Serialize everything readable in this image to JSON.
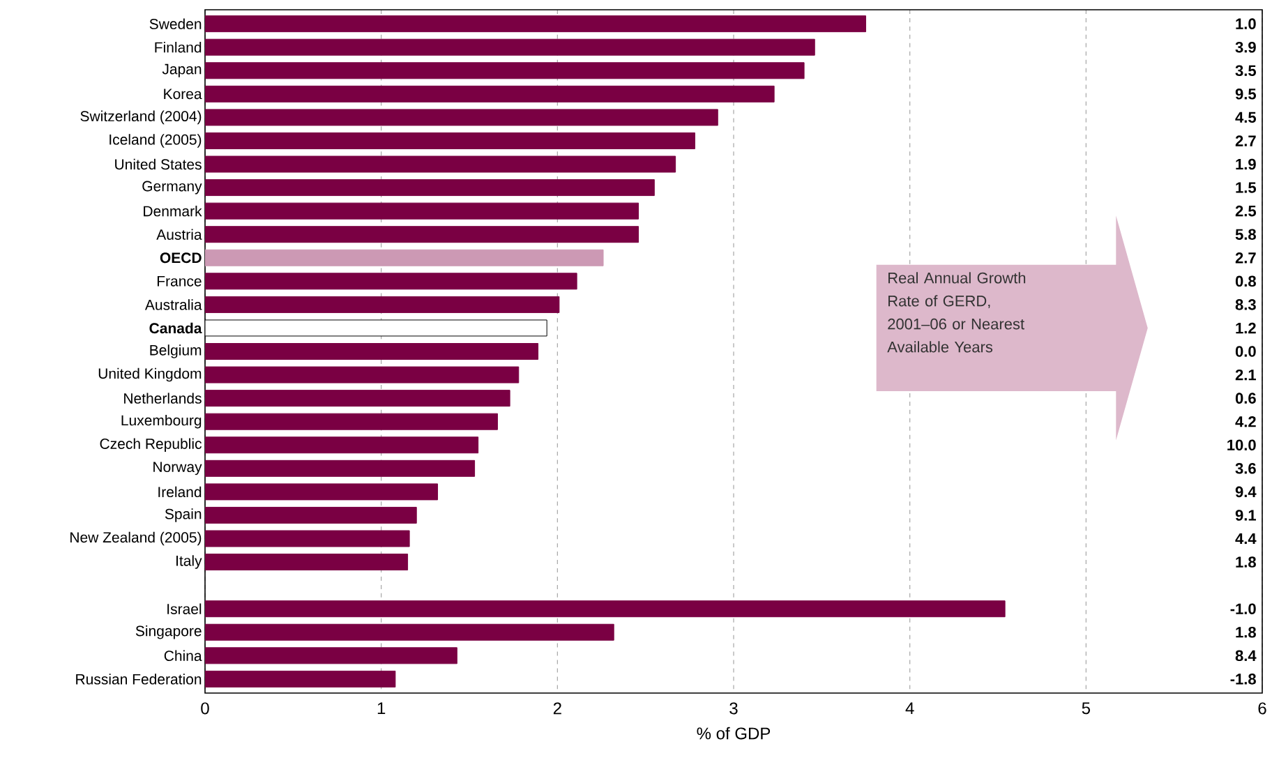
{
  "chart_data": {
    "type": "bar",
    "orientation": "horizontal",
    "xlabel": "% of GDP",
    "categories": [
      "Sweden",
      "Finland",
      "Japan",
      "Korea",
      "Switzerland (2004)",
      "Iceland (2005)",
      "United States",
      "Germany",
      "Denmark",
      "Austria",
      "**OECD**",
      "France",
      "Australia",
      "**Canada**",
      "Belgium",
      "United Kingdom",
      "Netherlands",
      "Luxembourg",
      "Czech Republic",
      "Norway",
      "Ireland",
      "Spain",
      "New Zealand (2005)",
      "Italy",
      null,
      "Israel",
      "Singapore",
      "China",
      "Russian Federation"
    ],
    "values": [
      3.75,
      3.46,
      3.4,
      3.23,
      2.91,
      2.78,
      2.67,
      2.55,
      2.46,
      2.46,
      2.26,
      2.11,
      2.01,
      1.94,
      1.89,
      1.78,
      1.73,
      1.66,
      1.55,
      1.53,
      1.32,
      1.2,
      1.16,
      1.15,
      null,
      4.54,
      2.32,
      1.43,
      1.08
    ],
    "colors": [
      "#7a0043",
      "#7a0043",
      "#7a0043",
      "#7a0043",
      "#7a0043",
      "#7a0043",
      "#7a0043",
      "#7a0043",
      "#7a0043",
      "#7a0043",
      "#cc99b4",
      "#7a0043",
      "#7a0043",
      "#ffffff",
      "#7a0043",
      "#7a0043",
      "#7a0043",
      "#7a0043",
      "#7a0043",
      "#7a0043",
      "#7a0043",
      "#7a0043",
      "#7a0043",
      "#7a0043",
      null,
      "#7a0043",
      "#7a0043",
      "#7a0043",
      "#7a0043"
    ],
    "xlim": [
      0,
      6
    ],
    "xticks": [
      0,
      1,
      2,
      3,
      4,
      5,
      6
    ],
    "grid": "x",
    "annotations": [
      "Real Annual Growth Rate of GERD, 2001–06 or Nearest Available Years",
      "1.0",
      "3.9",
      "3.5",
      "9.5",
      "4.5",
      "2.7",
      "1.9",
      "1.5",
      "2.5",
      "5.8",
      "2.7",
      "0.8",
      "8.3",
      "1.2",
      "0.0",
      "2.1",
      "0.6",
      "4.2",
      "10.0",
      "3.6",
      "9.4",
      "9.1",
      "4.4",
      "1.8",
      "-1.0",
      "1.8",
      "8.4",
      "-1.8"
    ]
  }
}
